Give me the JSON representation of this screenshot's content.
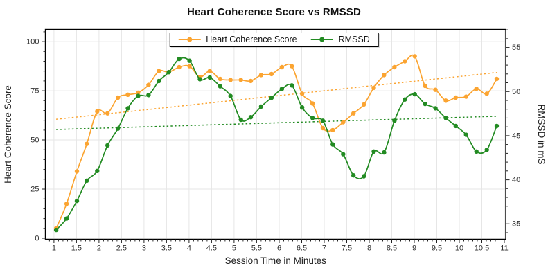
{
  "title": "Heart Coherence Score vs RMSSD",
  "legend": {
    "position": "top-center",
    "items": [
      {
        "label": "Heart Coherence Score",
        "color": "#fba431"
      },
      {
        "label": "RMSSD",
        "color": "#228b22"
      }
    ]
  },
  "axes": {
    "x": {
      "title": "Session Time in Minutes",
      "ticks": [
        1,
        1.5,
        2,
        2.5,
        3,
        3.5,
        4,
        4.5,
        5,
        5.5,
        6,
        6.5,
        7,
        7.5,
        8,
        8.5,
        9,
        9.5,
        10,
        10.5,
        11
      ],
      "minor_step": 0.1
    },
    "y_left": {
      "title": "Heart Coherence Score",
      "ticks": [
        0,
        25,
        50,
        75,
        100
      ],
      "minor_step": 5
    },
    "y_right": {
      "title": "RMSSD in mS",
      "ticks": [
        35,
        40,
        45,
        50,
        55
      ],
      "minor_step": 1
    }
  },
  "chart_data": {
    "type": "line",
    "title": "Heart Coherence Score vs RMSSD",
    "xlabel": "Session Time in Minutes",
    "ylabel_left": "Heart Coherence Score",
    "ylabel_right": "RMSSD in mS",
    "grid": true,
    "legend_position": "top-center",
    "x_range": [
      0.81,
      11.03
    ],
    "y_left_range": [
      -0.53,
      106.2
    ],
    "y_right_range": [
      33.25,
      57.05
    ],
    "x": [
      1.05,
      1.28,
      1.51,
      1.73,
      1.96,
      2.19,
      2.42,
      2.64,
      2.87,
      3.1,
      3.33,
      3.55,
      3.78,
      4.01,
      4.24,
      4.46,
      4.69,
      4.92,
      5.15,
      5.37,
      5.6,
      5.83,
      6.06,
      6.28,
      6.51,
      6.74,
      6.97,
      7.19,
      7.42,
      7.65,
      7.88,
      8.1,
      8.33,
      8.56,
      8.79,
      9.01,
      9.24,
      9.47,
      9.7,
      9.92,
      10.15,
      10.38,
      10.61,
      10.83
    ],
    "series": [
      {
        "name": "Heart Coherence Score",
        "axis": "left",
        "color": "#fba431",
        "style": "solid",
        "values": [
          5,
          17.5,
          34,
          48,
          64.5,
          63.5,
          71.5,
          73,
          74,
          78,
          85,
          84.5,
          87,
          87.5,
          82,
          85,
          81,
          80.5,
          80.5,
          80,
          83,
          83.5,
          87,
          87.5,
          73.5,
          68.5,
          56,
          55,
          59,
          63.5,
          68,
          76.5,
          83,
          87,
          90,
          92.5,
          77.5,
          75.5,
          70,
          71.5,
          72,
          76,
          73.5,
          81
        ]
      },
      {
        "name": "RMSSD",
        "axis": "right",
        "color": "#228b22",
        "style": "solid",
        "values": [
          34.3,
          35.6,
          37.6,
          39.9,
          41.0,
          43.9,
          45.8,
          48.1,
          49.5,
          49.6,
          51.2,
          52.2,
          53.7,
          53.5,
          51.4,
          51.6,
          50.6,
          49.5,
          46.8,
          47.1,
          48.3,
          49.3,
          50.3,
          50.7,
          48.2,
          47.0,
          46.7,
          44.0,
          42.9,
          40.5,
          40.4,
          43.2,
          43.1,
          46.7,
          49.1,
          49.7,
          48.6,
          48.1,
          47.0,
          46.1,
          45.1,
          43.2,
          43.4,
          46.1
        ]
      },
      {
        "name": "Heart Coherence Score trend",
        "axis": "left",
        "color": "#fba431",
        "style": "dotted",
        "trend": {
          "start": 60.5,
          "end": 84.3
        }
      },
      {
        "name": "RMSSD trend",
        "axis": "right",
        "color": "#228b22",
        "style": "dotted",
        "trend": {
          "start": 45.7,
          "end": 47.2
        }
      }
    ]
  },
  "colors": {
    "coherence": "#fba431",
    "rmssd": "#228b22",
    "grid": "#e6e6e6",
    "frame": "#000000",
    "tick_label": "#333333"
  }
}
